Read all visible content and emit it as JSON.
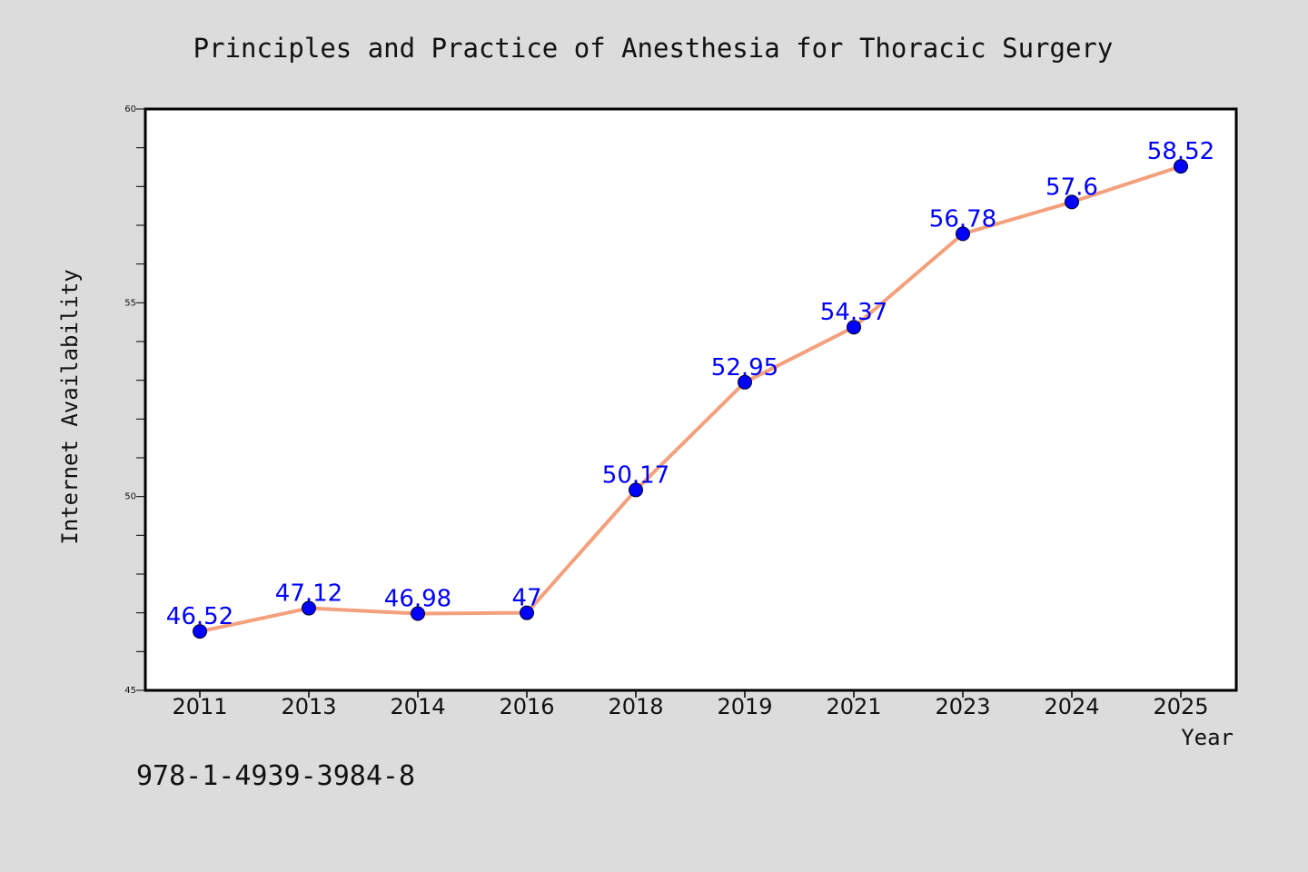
{
  "chart_data": {
    "type": "line",
    "title": "Principles and Practice of Anesthesia for Thoracic Surgery",
    "xlabel": "Year",
    "ylabel": "Internet Availability",
    "categories": [
      "2011",
      "2013",
      "2014",
      "2016",
      "2018",
      "2019",
      "2021",
      "2023",
      "2024",
      "2025"
    ],
    "series": [
      {
        "values": [
          46.52,
          47.12,
          46.98,
          47,
          50.17,
          52.95,
          54.37,
          56.78,
          57.6,
          58.52
        ],
        "labels": [
          "46.52",
          "47.12",
          "46.98",
          "47",
          "50.17",
          "52.95",
          "54.37",
          "56.78",
          "57.6",
          "58.52"
        ],
        "line_color": "#f4a07c",
        "marker_color": "#0000ff"
      }
    ],
    "ylim": [
      45,
      60
    ],
    "y_ticks": [
      "45",
      "50",
      "55",
      "60"
    ],
    "grid": false,
    "legend": "none"
  },
  "footnote": "978-1-4939-3984-8"
}
